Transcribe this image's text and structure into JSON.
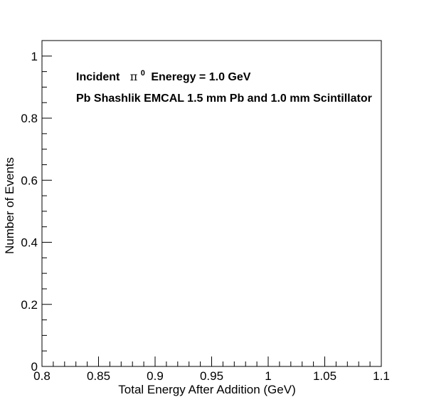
{
  "chart_data": {
    "type": "histogram",
    "title": "",
    "xlabel": "Total Energy After Addition (GeV)",
    "ylabel": "Number of Events",
    "xlim": [
      0.8,
      1.1
    ],
    "ylim": [
      0,
      1.05
    ],
    "x_ticks": [
      "0.8",
      "0.85",
      "0.9",
      "0.95",
      "1",
      "1.05",
      "1.1"
    ],
    "y_ticks": [
      "0",
      "0.2",
      "0.4",
      "0.6",
      "0.8",
      "1"
    ],
    "grid": false,
    "legend": "none",
    "series": [],
    "annotations": {
      "line1_prefix": "Incident",
      "line1_particle": "π",
      "line1_superscript": "0",
      "line1_suffix": "Eneregy = 1.0 GeV",
      "line2": "Pb Shashlik EMCAL 1.5 mm Pb and 1.0 mm Scintillator"
    }
  }
}
